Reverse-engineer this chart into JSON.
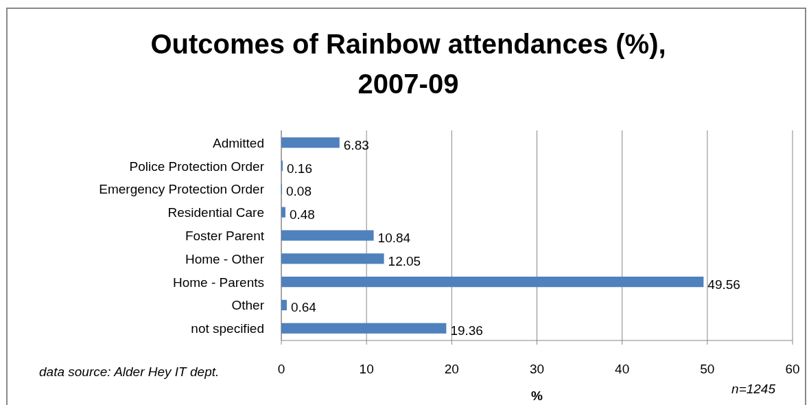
{
  "chart_data": {
    "type": "bar",
    "orientation": "horizontal",
    "title": "Outcomes of Rainbow attendances (%),\n2007-09",
    "xlabel": "%",
    "categories": [
      "Admitted",
      "Police Protection Order",
      "Emergency Protection Order",
      "Residential Care",
      "Foster Parent",
      "Home - Other",
      "Home - Parents",
      "Other",
      "not specified"
    ],
    "values": [
      6.83,
      0.16,
      0.08,
      0.48,
      10.84,
      12.05,
      49.56,
      0.64,
      19.36
    ],
    "color": "#4f81bd",
    "xlim": [
      0,
      60
    ],
    "xticks": [
      0,
      10,
      20,
      30,
      40,
      50,
      60
    ],
    "grid": "x",
    "data_labels": true,
    "annotations": [
      "data source: Alder Hey IT dept.",
      "n=1245"
    ]
  }
}
